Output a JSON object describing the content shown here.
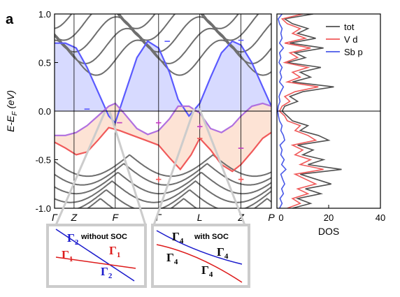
{
  "panel_label": "a",
  "chart_data": [
    {
      "type": "line",
      "ylabel": "E-E",
      "ylabel_sub": "F",
      "ylabel_unit": " (eV)",
      "ylim": [
        -1.0,
        1.0
      ],
      "ytick_values": [
        1.0,
        0.5,
        0.0,
        -0.5,
        -1.0
      ],
      "ytick_labels": [
        "1.0",
        "0.5",
        "0.0",
        "-0.5",
        "-1.0"
      ],
      "k_path": [
        {
          "label": "Γ",
          "k": 0.0
        },
        {
          "label": "Z",
          "k": 0.09
        },
        {
          "label": "F",
          "k": 0.28
        },
        {
          "label": "Γ",
          "k": 0.48
        },
        {
          "label": "L",
          "k": 0.67
        },
        {
          "label": "Z",
          "k": 0.86
        },
        {
          "label": "P",
          "k": 1.0
        }
      ],
      "fermi_level": 0.0,
      "bands": [
        {
          "name": "Sb p band",
          "color": "#5a5aff",
          "k": [
            0.0,
            0.05,
            0.1,
            0.15,
            0.2,
            0.25,
            0.28,
            0.32,
            0.38,
            0.43,
            0.48,
            0.53,
            0.57,
            0.62,
            0.67,
            0.72,
            0.77,
            0.82,
            0.86,
            0.91,
            0.96,
            1.0
          ],
          "energy": [
            0.7,
            0.7,
            0.65,
            0.45,
            0.2,
            -0.05,
            -0.12,
            0.15,
            0.55,
            0.72,
            0.65,
            0.4,
            0.12,
            -0.05,
            0.08,
            0.35,
            0.6,
            0.72,
            0.68,
            0.5,
            0.25,
            0.05
          ]
        },
        {
          "name": "V d band (red)",
          "color": "#f05a5a",
          "k": [
            0.0,
            0.05,
            0.1,
            0.15,
            0.2,
            0.25,
            0.3,
            0.36,
            0.42,
            0.48,
            0.53,
            0.58,
            0.63,
            0.67,
            0.72,
            0.77,
            0.82,
            0.86,
            0.91,
            0.96,
            1.0
          ],
          "energy": [
            -0.32,
            -0.38,
            -0.45,
            -0.42,
            -0.3,
            -0.17,
            -0.2,
            -0.25,
            -0.3,
            -0.35,
            -0.48,
            -0.6,
            -0.45,
            -0.28,
            -0.4,
            -0.55,
            -0.62,
            -0.55,
            -0.42,
            -0.28,
            -0.22
          ]
        },
        {
          "name": "V d band (purple)",
          "color": "#b070e0",
          "k": [
            0.0,
            0.05,
            0.1,
            0.15,
            0.2,
            0.25,
            0.28,
            0.32,
            0.38,
            0.43,
            0.48,
            0.53,
            0.57,
            0.62,
            0.67,
            0.72,
            0.77,
            0.82,
            0.86,
            0.91,
            0.96,
            1.0
          ],
          "energy": [
            -0.25,
            -0.25,
            -0.22,
            -0.15,
            -0.05,
            0.05,
            0.08,
            -0.02,
            -0.18,
            -0.24,
            -0.2,
            -0.08,
            0.05,
            0.05,
            -0.02,
            -0.18,
            -0.22,
            -0.15,
            -0.05,
            0.05,
            0.08,
            0.05
          ]
        }
      ],
      "parity_labels": [
        {
          "text": "−",
          "k": 0.15,
          "energy": 0.02,
          "color": "#5a5aff"
        },
        {
          "text": "−",
          "k": 0.3,
          "energy": -0.12,
          "color": "#c040c0"
        },
        {
          "text": "−",
          "k": 0.52,
          "energy": 0.72,
          "color": "#5a5aff"
        },
        {
          "text": "+",
          "k": 0.48,
          "energy": -0.12,
          "color": "#c040c0"
        },
        {
          "text": "+",
          "k": 0.48,
          "energy": -0.7,
          "color": "#f05a5a"
        },
        {
          "text": "+",
          "k": 0.67,
          "energy": -0.16,
          "color": "#c040c0"
        },
        {
          "text": "−",
          "k": 0.67,
          "energy": -0.28,
          "color": "#f05a5a"
        },
        {
          "text": "−",
          "k": 0.86,
          "energy": 0.73,
          "color": "#5a5aff"
        },
        {
          "text": "−",
          "k": 0.86,
          "energy": -0.38,
          "color": "#c040c0"
        },
        {
          "text": "+",
          "k": 0.86,
          "energy": -0.7,
          "color": "#f05a5a"
        }
      ],
      "fill_colors": {
        "blue": "#d0d4ff",
        "orange": "#fde0d0"
      }
    },
    {
      "type": "line",
      "xlabel": "DOS",
      "xlim": [
        0,
        40
      ],
      "xtick_values": [
        0,
        20,
        40
      ],
      "xtick_labels": [
        "0",
        "20",
        "40"
      ],
      "ylim": [
        -1.0,
        1.0
      ],
      "legend_position": "top-right",
      "series": [
        {
          "name": "tot",
          "color": "#505050",
          "energy": [
            1.0,
            0.95,
            0.9,
            0.85,
            0.8,
            0.75,
            0.7,
            0.65,
            0.6,
            0.55,
            0.5,
            0.45,
            0.4,
            0.35,
            0.3,
            0.25,
            0.2,
            0.15,
            0.1,
            0.05,
            0.0,
            -0.05,
            -0.1,
            -0.15,
            -0.2,
            -0.25,
            -0.3,
            -0.35,
            -0.4,
            -0.45,
            -0.5,
            -0.55,
            -0.6,
            -0.65,
            -0.7,
            -0.75,
            -0.8,
            -0.85,
            -0.9,
            -0.95,
            -1.0
          ],
          "dos": [
            14,
            3,
            6,
            12,
            8,
            15,
            5,
            18,
            7,
            11,
            4,
            17,
            9,
            13,
            6,
            22,
            10,
            5,
            8,
            3,
            2,
            4,
            6,
            12,
            9,
            16,
            20,
            8,
            14,
            10,
            18,
            12,
            25,
            9,
            15,
            21,
            11,
            17,
            8,
            13,
            6
          ]
        },
        {
          "name": "V d",
          "color": "#f05a5a",
          "energy": [
            1.0,
            0.95,
            0.9,
            0.85,
            0.8,
            0.75,
            0.7,
            0.65,
            0.6,
            0.55,
            0.5,
            0.45,
            0.4,
            0.35,
            0.3,
            0.25,
            0.2,
            0.15,
            0.1,
            0.05,
            0.0,
            -0.05,
            -0.1,
            -0.15,
            -0.2,
            -0.25,
            -0.3,
            -0.35,
            -0.4,
            -0.45,
            -0.5,
            -0.55,
            -0.6,
            -0.65,
            -0.7,
            -0.75,
            -0.8,
            -0.85,
            -0.9,
            -0.95,
            -1.0
          ],
          "dos": [
            10,
            2,
            4,
            9,
            6,
            11,
            3,
            13,
            5,
            8,
            3,
            12,
            6,
            9,
            4,
            16,
            7,
            3,
            5,
            2,
            1,
            3,
            4,
            9,
            7,
            12,
            15,
            6,
            10,
            7,
            13,
            9,
            18,
            7,
            11,
            15,
            8,
            12,
            6,
            9,
            4
          ]
        },
        {
          "name": "Sb p",
          "color": "#4a5ae8",
          "energy": [
            1.0,
            0.95,
            0.9,
            0.85,
            0.8,
            0.75,
            0.7,
            0.65,
            0.6,
            0.55,
            0.5,
            0.45,
            0.4,
            0.35,
            0.3,
            0.25,
            0.2,
            0.15,
            0.1,
            0.05,
            0.0,
            -0.05,
            -0.1,
            -0.15,
            -0.2,
            -0.25,
            -0.3,
            -0.35,
            -0.4,
            -0.45,
            -0.5,
            -0.55,
            -0.6,
            -0.65,
            -0.7,
            -0.75,
            -0.8,
            -0.85,
            -0.9,
            -0.95,
            -1.0
          ],
          "dos": [
            2,
            0.5,
            1,
            2,
            1.5,
            2,
            1,
            2.5,
            1,
            1.5,
            0.8,
            2,
            1.2,
            1.8,
            1,
            2.5,
            1.5,
            0.8,
            1.2,
            0.5,
            0.3,
            0.6,
            1,
            2,
            1.5,
            2.5,
            3,
            1.2,
            2,
            1.5,
            2.8,
            1.8,
            3.5,
            1.5,
            2.2,
            3,
            1.8,
            2.5,
            1.2,
            2,
            1
          ]
        }
      ]
    }
  ],
  "inset_left": {
    "title": "without SOC",
    "labels": [
      "Γ",
      "2",
      "Γ",
      "1",
      "Γ",
      "1",
      "Γ",
      "2"
    ]
  },
  "inset_right": {
    "title": "with SOC",
    "labels": [
      "Γ",
      "4",
      "Γ",
      "4",
      "Γ",
      "4",
      "Γ",
      "4"
    ]
  }
}
